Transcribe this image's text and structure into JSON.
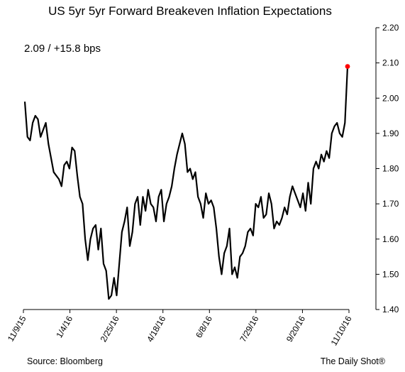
{
  "chart_data": {
    "type": "line",
    "title": "US 5yr 5yr Forward Breakeven Inflation Expectations",
    "annotation": "2.09  /  +15.8 bps",
    "source": "Source: Bloomberg",
    "credit": "The Daily Shot®",
    "x_tick_labels": [
      "11/9/15",
      "1/4/16",
      "2/25/16",
      "4/18/16",
      "6/8/16",
      "7/29/16",
      "9/20/16",
      "11/10/16"
    ],
    "y_tick_labels": [
      "2.20",
      "2.10",
      "2.00",
      "1.90",
      "1.80",
      "1.70",
      "1.60",
      "1.50",
      "1.40"
    ],
    "ylim": [
      1.4,
      2.2
    ],
    "y_axis_side": "right",
    "grid": false,
    "line_color": "#000000",
    "end_marker_color": "#ff0000",
    "series": [
      {
        "values": [
          1.99,
          1.89,
          1.88,
          1.93,
          1.95,
          1.94,
          1.89,
          1.91,
          1.93,
          1.87,
          1.83,
          1.79,
          1.78,
          1.77,
          1.75,
          1.81,
          1.82,
          1.8,
          1.86,
          1.85,
          1.78,
          1.72,
          1.7,
          1.6,
          1.54,
          1.6,
          1.63,
          1.64,
          1.57,
          1.63,
          1.53,
          1.51,
          1.43,
          1.44,
          1.49,
          1.44,
          1.53,
          1.62,
          1.65,
          1.69,
          1.58,
          1.62,
          1.7,
          1.72,
          1.64,
          1.72,
          1.68,
          1.74,
          1.7,
          1.69,
          1.65,
          1.72,
          1.74,
          1.65,
          1.7,
          1.72,
          1.75,
          1.8,
          1.84,
          1.87,
          1.9,
          1.87,
          1.79,
          1.8,
          1.77,
          1.79,
          1.72,
          1.7,
          1.66,
          1.73,
          1.7,
          1.71,
          1.69,
          1.63,
          1.55,
          1.5,
          1.56,
          1.58,
          1.63,
          1.5,
          1.52,
          1.49,
          1.55,
          1.56,
          1.58,
          1.62,
          1.63,
          1.61,
          1.7,
          1.69,
          1.72,
          1.66,
          1.67,
          1.73,
          1.7,
          1.63,
          1.65,
          1.64,
          1.66,
          1.69,
          1.67,
          1.72,
          1.75,
          1.73,
          1.71,
          1.69,
          1.73,
          1.68,
          1.76,
          1.7,
          1.8,
          1.82,
          1.8,
          1.84,
          1.82,
          1.85,
          1.83,
          1.9,
          1.92,
          1.93,
          1.9,
          1.89,
          1.93,
          2.09
        ],
        "x_start": "11/9/15",
        "x_end": "11/10/16"
      }
    ]
  }
}
